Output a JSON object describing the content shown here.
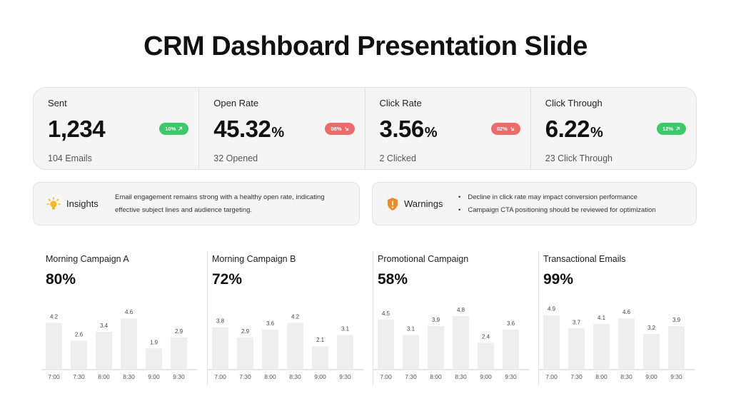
{
  "title": "CRM Dashboard Presentation Slide",
  "kpis": [
    {
      "label": "Sent",
      "value": "1,234",
      "unit": "",
      "sub": "104 Emails",
      "badge": "10%",
      "trend": "up"
    },
    {
      "label": "Open Rate",
      "value": "45.32",
      "unit": "%",
      "sub": "32 Opened",
      "badge": "08%",
      "trend": "down"
    },
    {
      "label": "Click Rate",
      "value": "3.56",
      "unit": "%",
      "sub": "2 Clicked",
      "badge": "02%",
      "trend": "down"
    },
    {
      "label": "Click Through",
      "value": "6.22",
      "unit": "%",
      "sub": "23 Click Through",
      "badge": "12%",
      "trend": "up"
    }
  ],
  "insights": {
    "heading": "Insights",
    "body": "Email engagement remains strong with a healthy open rate, indicating effective subject lines and audience targeting.",
    "icon": "lightbulb-icon"
  },
  "warnings": {
    "heading": "Warnings",
    "items": [
      "Decline in click rate may impact conversion performance",
      "Campaign CTA positioning should be reviewed for optimization"
    ],
    "icon": "shield-warning-icon"
  },
  "colors": {
    "up": "#3cc969",
    "down": "#ef6b6b",
    "bar": "#eeeeee",
    "warning": "#f08a24",
    "bulb": "#f5b81c"
  },
  "chart_data": [
    {
      "type": "bar",
      "title": "Morning Campaign A",
      "headline": "80%",
      "categories": [
        "7:00",
        "7:30",
        "8:00",
        "8:30",
        "9:00",
        "9:30"
      ],
      "values": [
        4.2,
        2.6,
        3.4,
        4.6,
        1.9,
        2.9
      ],
      "ylim": [
        0,
        5
      ]
    },
    {
      "type": "bar",
      "title": "Morning Campaign B",
      "headline": "72%",
      "categories": [
        "7:00",
        "7:30",
        "8:00",
        "8:30",
        "9:00",
        "9:30"
      ],
      "values": [
        3.8,
        2.9,
        3.6,
        4.2,
        2.1,
        3.1
      ],
      "ylim": [
        0,
        5
      ]
    },
    {
      "type": "bar",
      "title": "Promotional Campaign",
      "headline": "58%",
      "categories": [
        "7:00",
        "7:30",
        "8:00",
        "8:30",
        "9:00",
        "9:30"
      ],
      "values": [
        4.5,
        3.1,
        3.9,
        4.8,
        2.4,
        3.6
      ],
      "ylim": [
        0,
        5
      ]
    },
    {
      "type": "bar",
      "title": "Transactional Emails",
      "headline": "99%",
      "categories": [
        "7:00",
        "7:30",
        "8:00",
        "8:30",
        "9:00",
        "9:30"
      ],
      "values": [
        4.9,
        3.7,
        4.1,
        4.6,
        3.2,
        3.9
      ],
      "ylim": [
        0,
        5
      ]
    }
  ]
}
